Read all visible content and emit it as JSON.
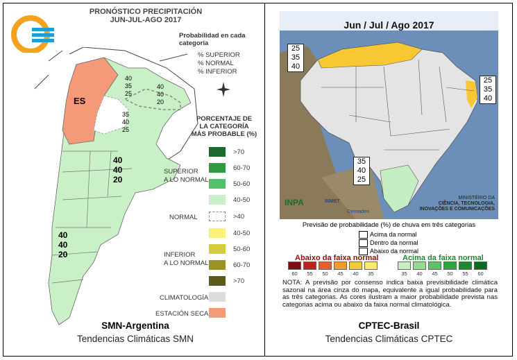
{
  "left": {
    "title_line1": "PRONÓSTICO PRECIPITACIÓN",
    "title_line2": "JUN-JUL-AGO 2017",
    "prob_title_1": "Probabilidad en cada",
    "prob_title_2": "categoría",
    "prob_superior": "% SUPERIOR",
    "prob_normal": "% NORMAL",
    "prob_inferior": "% INFERIOR",
    "pct_title_1": "PORCENTAJE DE",
    "pct_title_2": "LA CATEGORÍA",
    "pct_title_3": "MÁS PROBABLE (%)",
    "superior_label_1": "SUPERIOR",
    "superior_label_2": "A LO NORMAL",
    "normal_label": "NORMAL",
    "inferior_label_1": "INFERIOR",
    "inferior_label_2": "A LO NORMAL",
    "climatologia": "CLIMATOLOGÍA",
    "estacion_seca": "ESTACIÓN SECA",
    "legend": {
      "sup_70": ">70",
      "sup_60": "60-70",
      "sup_50": "50-60",
      "sup_40": "40-50",
      "normal_40": ">40",
      "inf_40": "40-50",
      "inf_50": "50-60",
      "inf_60": "60-70",
      "inf_70": ">70"
    },
    "colors": {
      "sup_70": "#1b6b30",
      "sup_60": "#2e9a42",
      "sup_50": "#55c06a",
      "sup_40": "#c9f0c6",
      "inf_40": "#fff27a",
      "inf_50": "#d4cc3a",
      "inf_60": "#9a9224",
      "inf_70": "#5c5a1c",
      "clim": "#dcdcdc",
      "seca": "#f59a78"
    },
    "map_labels": {
      "es": "ES",
      "ne_1": "40",
      "ne_2": "35",
      "ne_3": "25",
      "e_1": "40",
      "e_2": "40",
      "e_3": "20",
      "c_1": "35",
      "c_2": "40",
      "c_3": "25",
      "m_1": "40",
      "m_2": "40",
      "m_3": "20",
      "s_1": "40",
      "s_2": "40",
      "s_3": "20"
    },
    "caption_title": "SMN-Argentina",
    "caption_sub": "Tendencias Climáticas SMN"
  },
  "right": {
    "map_title": "Jun / Jul / Ago 2017",
    "box_nw": [
      "25",
      "35",
      "40"
    ],
    "box_ne": [
      "25",
      "35",
      "40"
    ],
    "box_s": [
      "35",
      "40",
      "25"
    ],
    "ministry_1": "MINISTÉRIO DA",
    "ministry_2": "CIÊNCIA, TECNOLOGIA,",
    "ministry_3": "INOVAÇÕES E COMUNICAÇÕES",
    "inpa": "INPA",
    "inmet": "INMET",
    "cemaden": "Cemaden",
    "prev_title": "Previsão de probabilidade (%) de chuva em três categorias",
    "leg_acima": "Acima da normal",
    "leg_dentro": "Dentro da normal",
    "leg_abaixo": "Abaixo da normal",
    "scale_below_title": "Abaixo da faixa normal",
    "scale_above_title": "Acima da faixa normal",
    "scale_below": [
      {
        "v": "60",
        "c": "#7a1010"
      },
      {
        "v": "55",
        "c": "#b8261a"
      },
      {
        "v": "50",
        "c": "#e0622a"
      },
      {
        "v": "45",
        "c": "#f09a30"
      },
      {
        "v": "40",
        "c": "#f7c832"
      },
      {
        "v": "35",
        "c": "#fbe870"
      }
    ],
    "scale_above": [
      {
        "v": "35",
        "c": "#c6eec4"
      },
      {
        "v": "40",
        "c": "#95dc90"
      },
      {
        "v": "45",
        "c": "#5cc460"
      },
      {
        "v": "50",
        "c": "#2ea63a"
      },
      {
        "v": "55",
        "c": "#1c8a2c"
      },
      {
        "v": "60",
        "c": "#0f6a1e"
      }
    ],
    "nota": "NOTA: A previsão por consenso indica baixa previsibilidade climática sazonal na área cinza do mapa, equivalente a igual probabilidade para as três categorias. As cores ilustram a maior probabilidade prevista nas categorias acima ou abaixo da faixa normal climatológica.",
    "caption_title": "CPTEC-Brasil",
    "caption_sub": "Tendencias Climáticas CPTEC"
  }
}
